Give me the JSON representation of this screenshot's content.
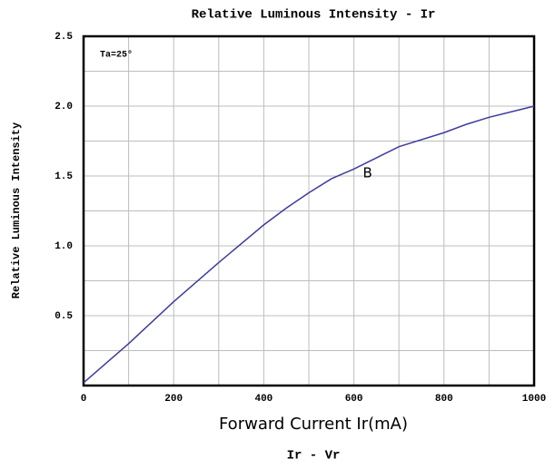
{
  "chart_data": {
    "type": "line",
    "title": "Relative Luminous Intensity - Ir",
    "subtitle": "Ir - Vr",
    "x_label": "Forward Current Ir(mA)",
    "y_label": "Relative Luminous Intensity",
    "annotation": "Ta=25°",
    "x": [
      0,
      100,
      200,
      300,
      400,
      450,
      500,
      550,
      600,
      700,
      800,
      850,
      900,
      1000
    ],
    "series": [
      {
        "name": "B",
        "color": "#3c3c9c",
        "values": [
          0.02,
          0.3,
          0.6,
          0.88,
          1.15,
          1.27,
          1.38,
          1.48,
          1.55,
          1.71,
          1.81,
          1.87,
          1.92,
          2.0
        ]
      }
    ],
    "xlim": [
      0,
      1000
    ],
    "ylim": [
      0,
      2.5
    ],
    "xticks": [
      0,
      200,
      400,
      600,
      800,
      1000
    ],
    "x_minor_ticks": [
      100,
      300,
      500,
      700,
      900
    ],
    "yticks": [
      0.5,
      {
        "value": 1,
        "label": "1.0"
      },
      1.5,
      {
        "value": 2,
        "label": "2.0"
      },
      2.5
    ],
    "y_minor_ticks": [
      0.25,
      0.75,
      1.25,
      1.75,
      2.25
    ],
    "grid": true
  }
}
